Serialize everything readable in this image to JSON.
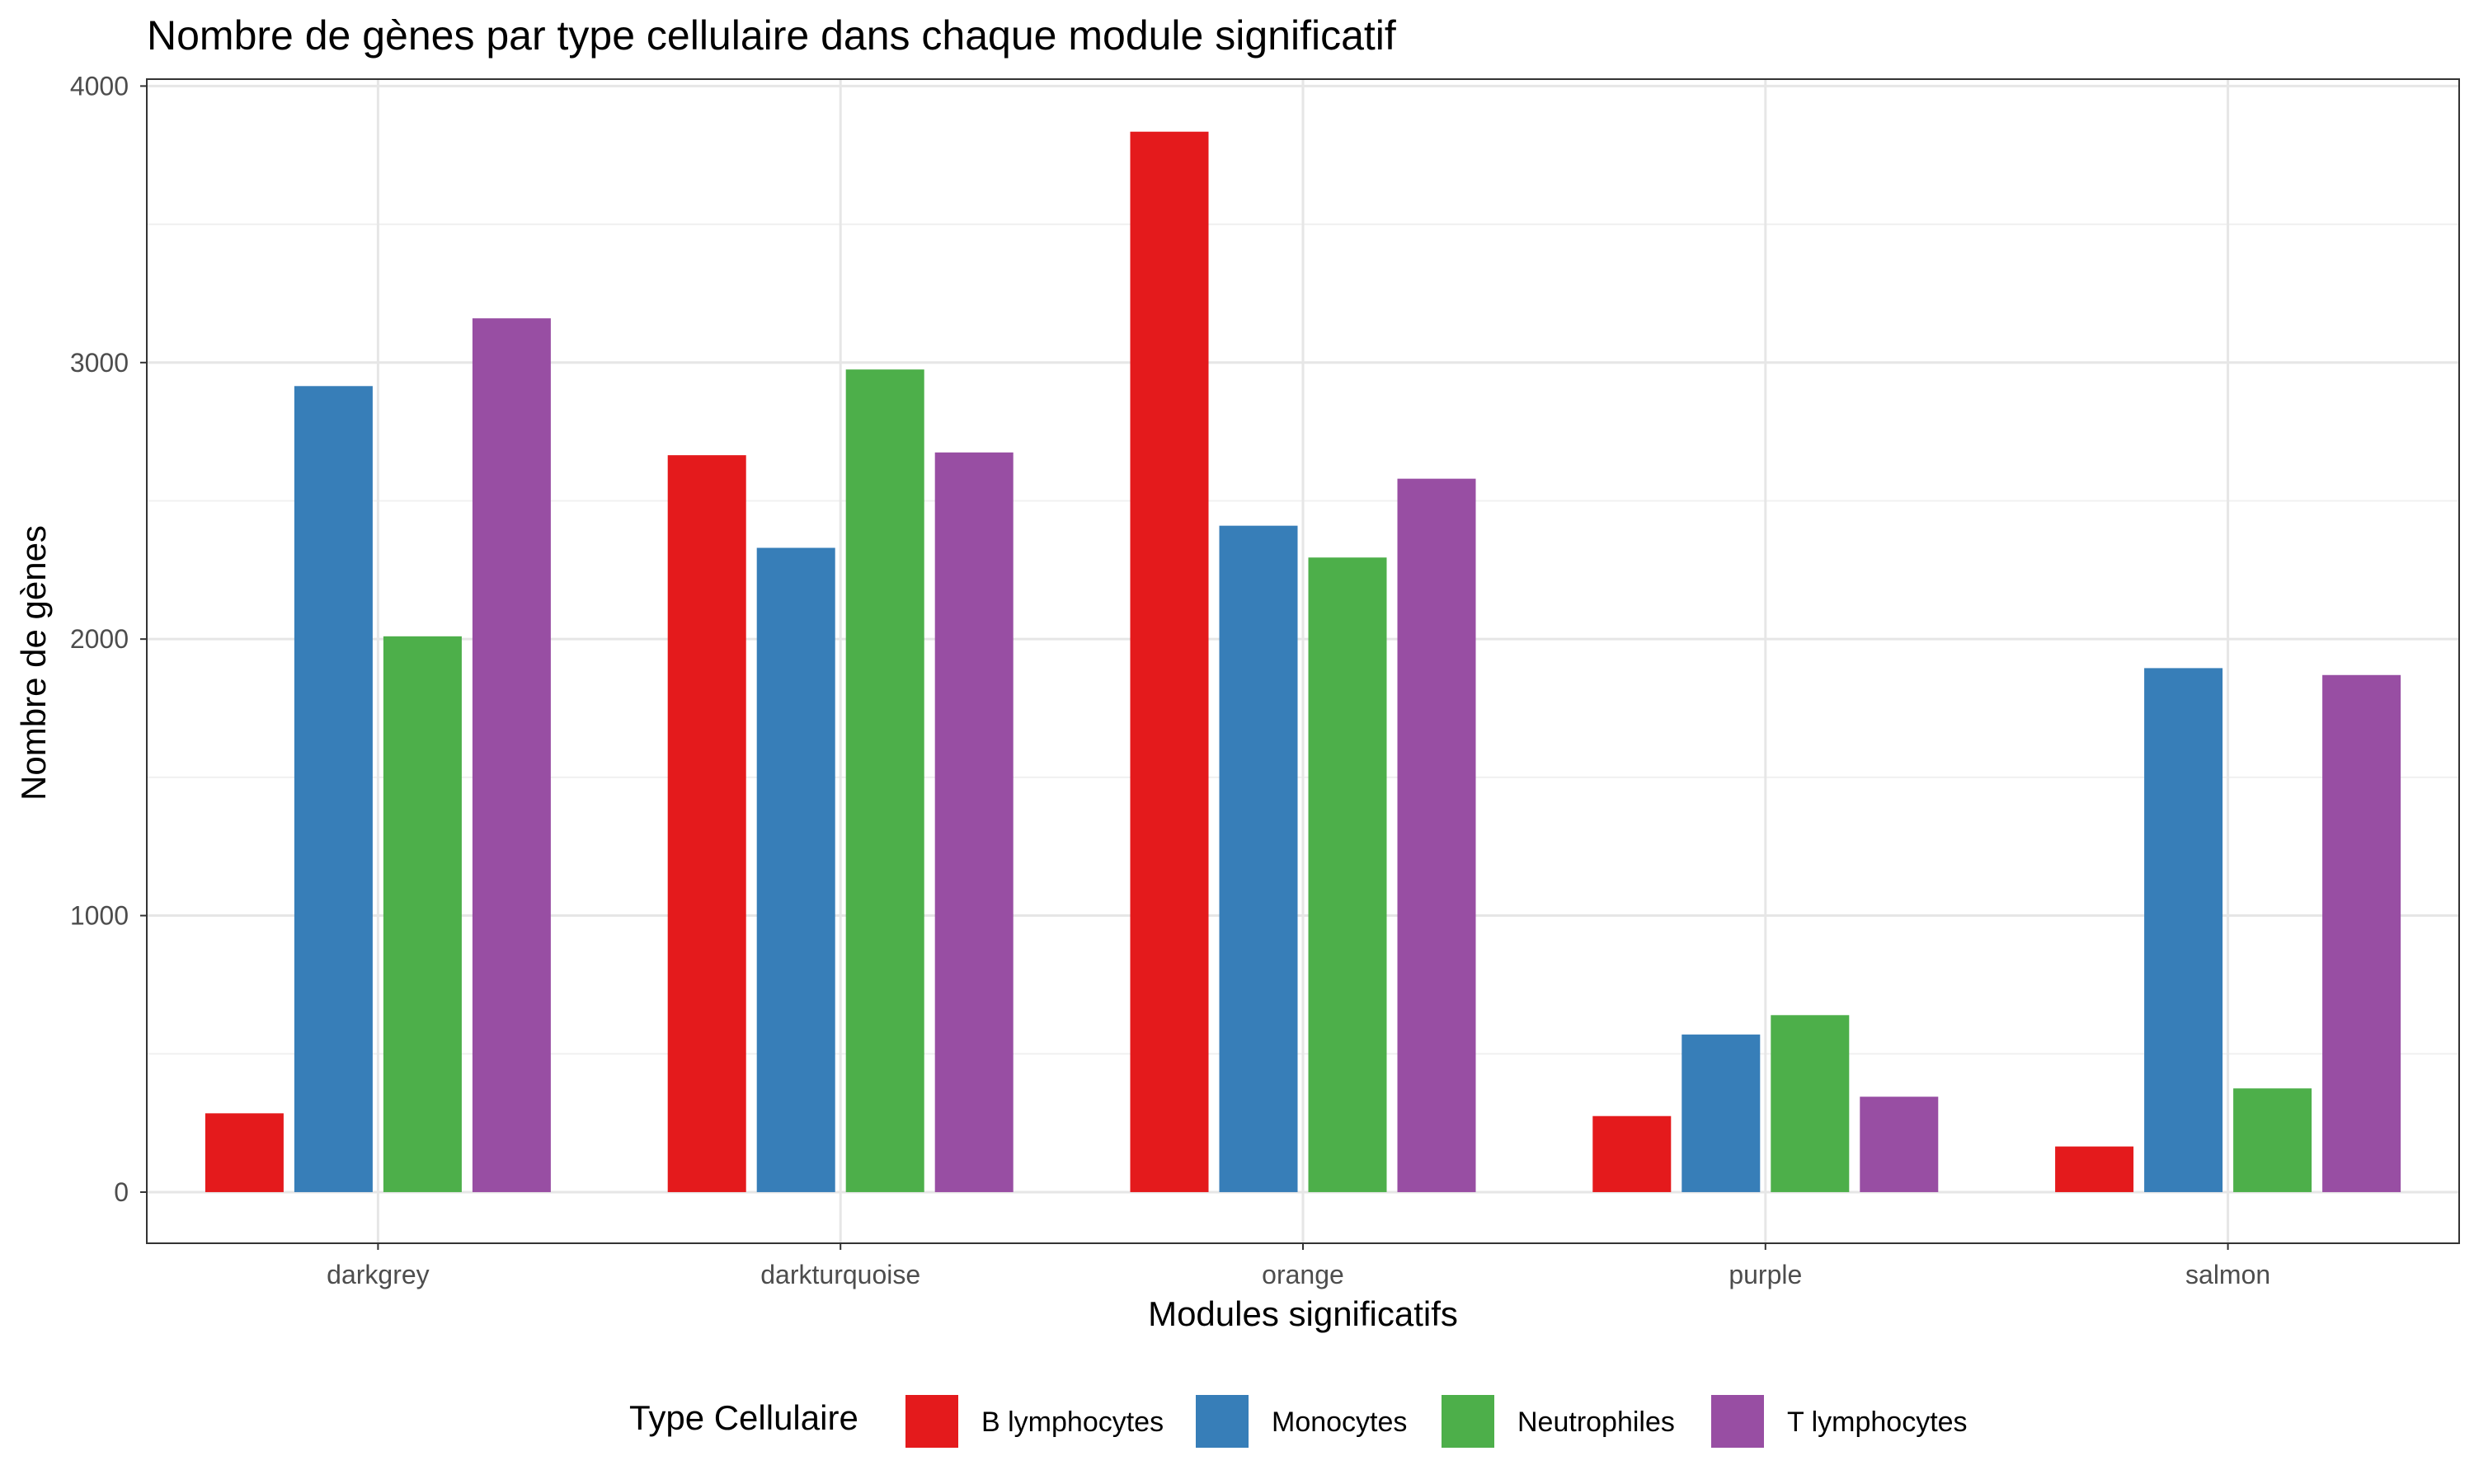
{
  "chart_data": {
    "type": "bar",
    "title": "Nombre de gènes par type cellulaire dans chaque module significatif",
    "xlabel": "Modules significatifs",
    "ylabel": "Nombre de gènes",
    "categories": [
      "darkgrey",
      "darkturquoise",
      "orange",
      "purple",
      "salmon"
    ],
    "ylim": [
      -185,
      4025
    ],
    "yticks": [
      0,
      1000,
      2000,
      3000,
      4000
    ],
    "yticks_labels": [
      "0",
      "1000",
      "2000",
      "3000",
      "4000"
    ],
    "grid": true,
    "legend": {
      "title": "Type Cellulaire",
      "position": "bottom"
    },
    "series": [
      {
        "name": "B lymphocytes",
        "color": "#e41a1c",
        "values": [
          285,
          2665,
          3835,
          275,
          165
        ]
      },
      {
        "name": "Monocytes",
        "color": "#377eb8",
        "values": [
          2915,
          2330,
          2410,
          570,
          1895
        ]
      },
      {
        "name": "Neutrophiles",
        "color": "#4daf4a",
        "values": [
          2010,
          2975,
          2295,
          640,
          375
        ]
      },
      {
        "name": "T lymphocytes",
        "color": "#984ea3",
        "values": [
          3160,
          2675,
          2580,
          345,
          1870
        ]
      }
    ]
  }
}
